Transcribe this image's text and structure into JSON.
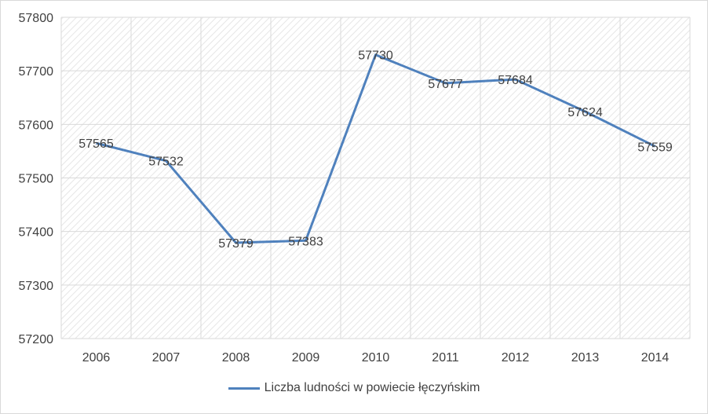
{
  "chart_data": {
    "type": "line",
    "title": "",
    "xlabel": "",
    "ylabel": "",
    "categories": [
      "2006",
      "2007",
      "2008",
      "2009",
      "2010",
      "2011",
      "2012",
      "2013",
      "2014"
    ],
    "series": [
      {
        "name": "Liczba ludności w powiecie łęczyńskim",
        "values": [
          57565,
          57532,
          57379,
          57383,
          57730,
          57677,
          57684,
          57624,
          57559
        ],
        "labels": [
          "57565",
          "57532",
          "57379",
          "57383",
          "57730",
          "57677",
          "57684",
          "57624",
          "57559"
        ]
      }
    ],
    "ylim": [
      57200,
      57800
    ],
    "yticks": [
      "57200",
      "57300",
      "57400",
      "57500",
      "57600",
      "57700",
      "57800"
    ],
    "grid": true,
    "legend_position": "bottom",
    "colors": {
      "series": "#4f81bd",
      "grid": "#d9d9d9",
      "hatch": "#e6e6e6",
      "text": "#404040"
    }
  }
}
